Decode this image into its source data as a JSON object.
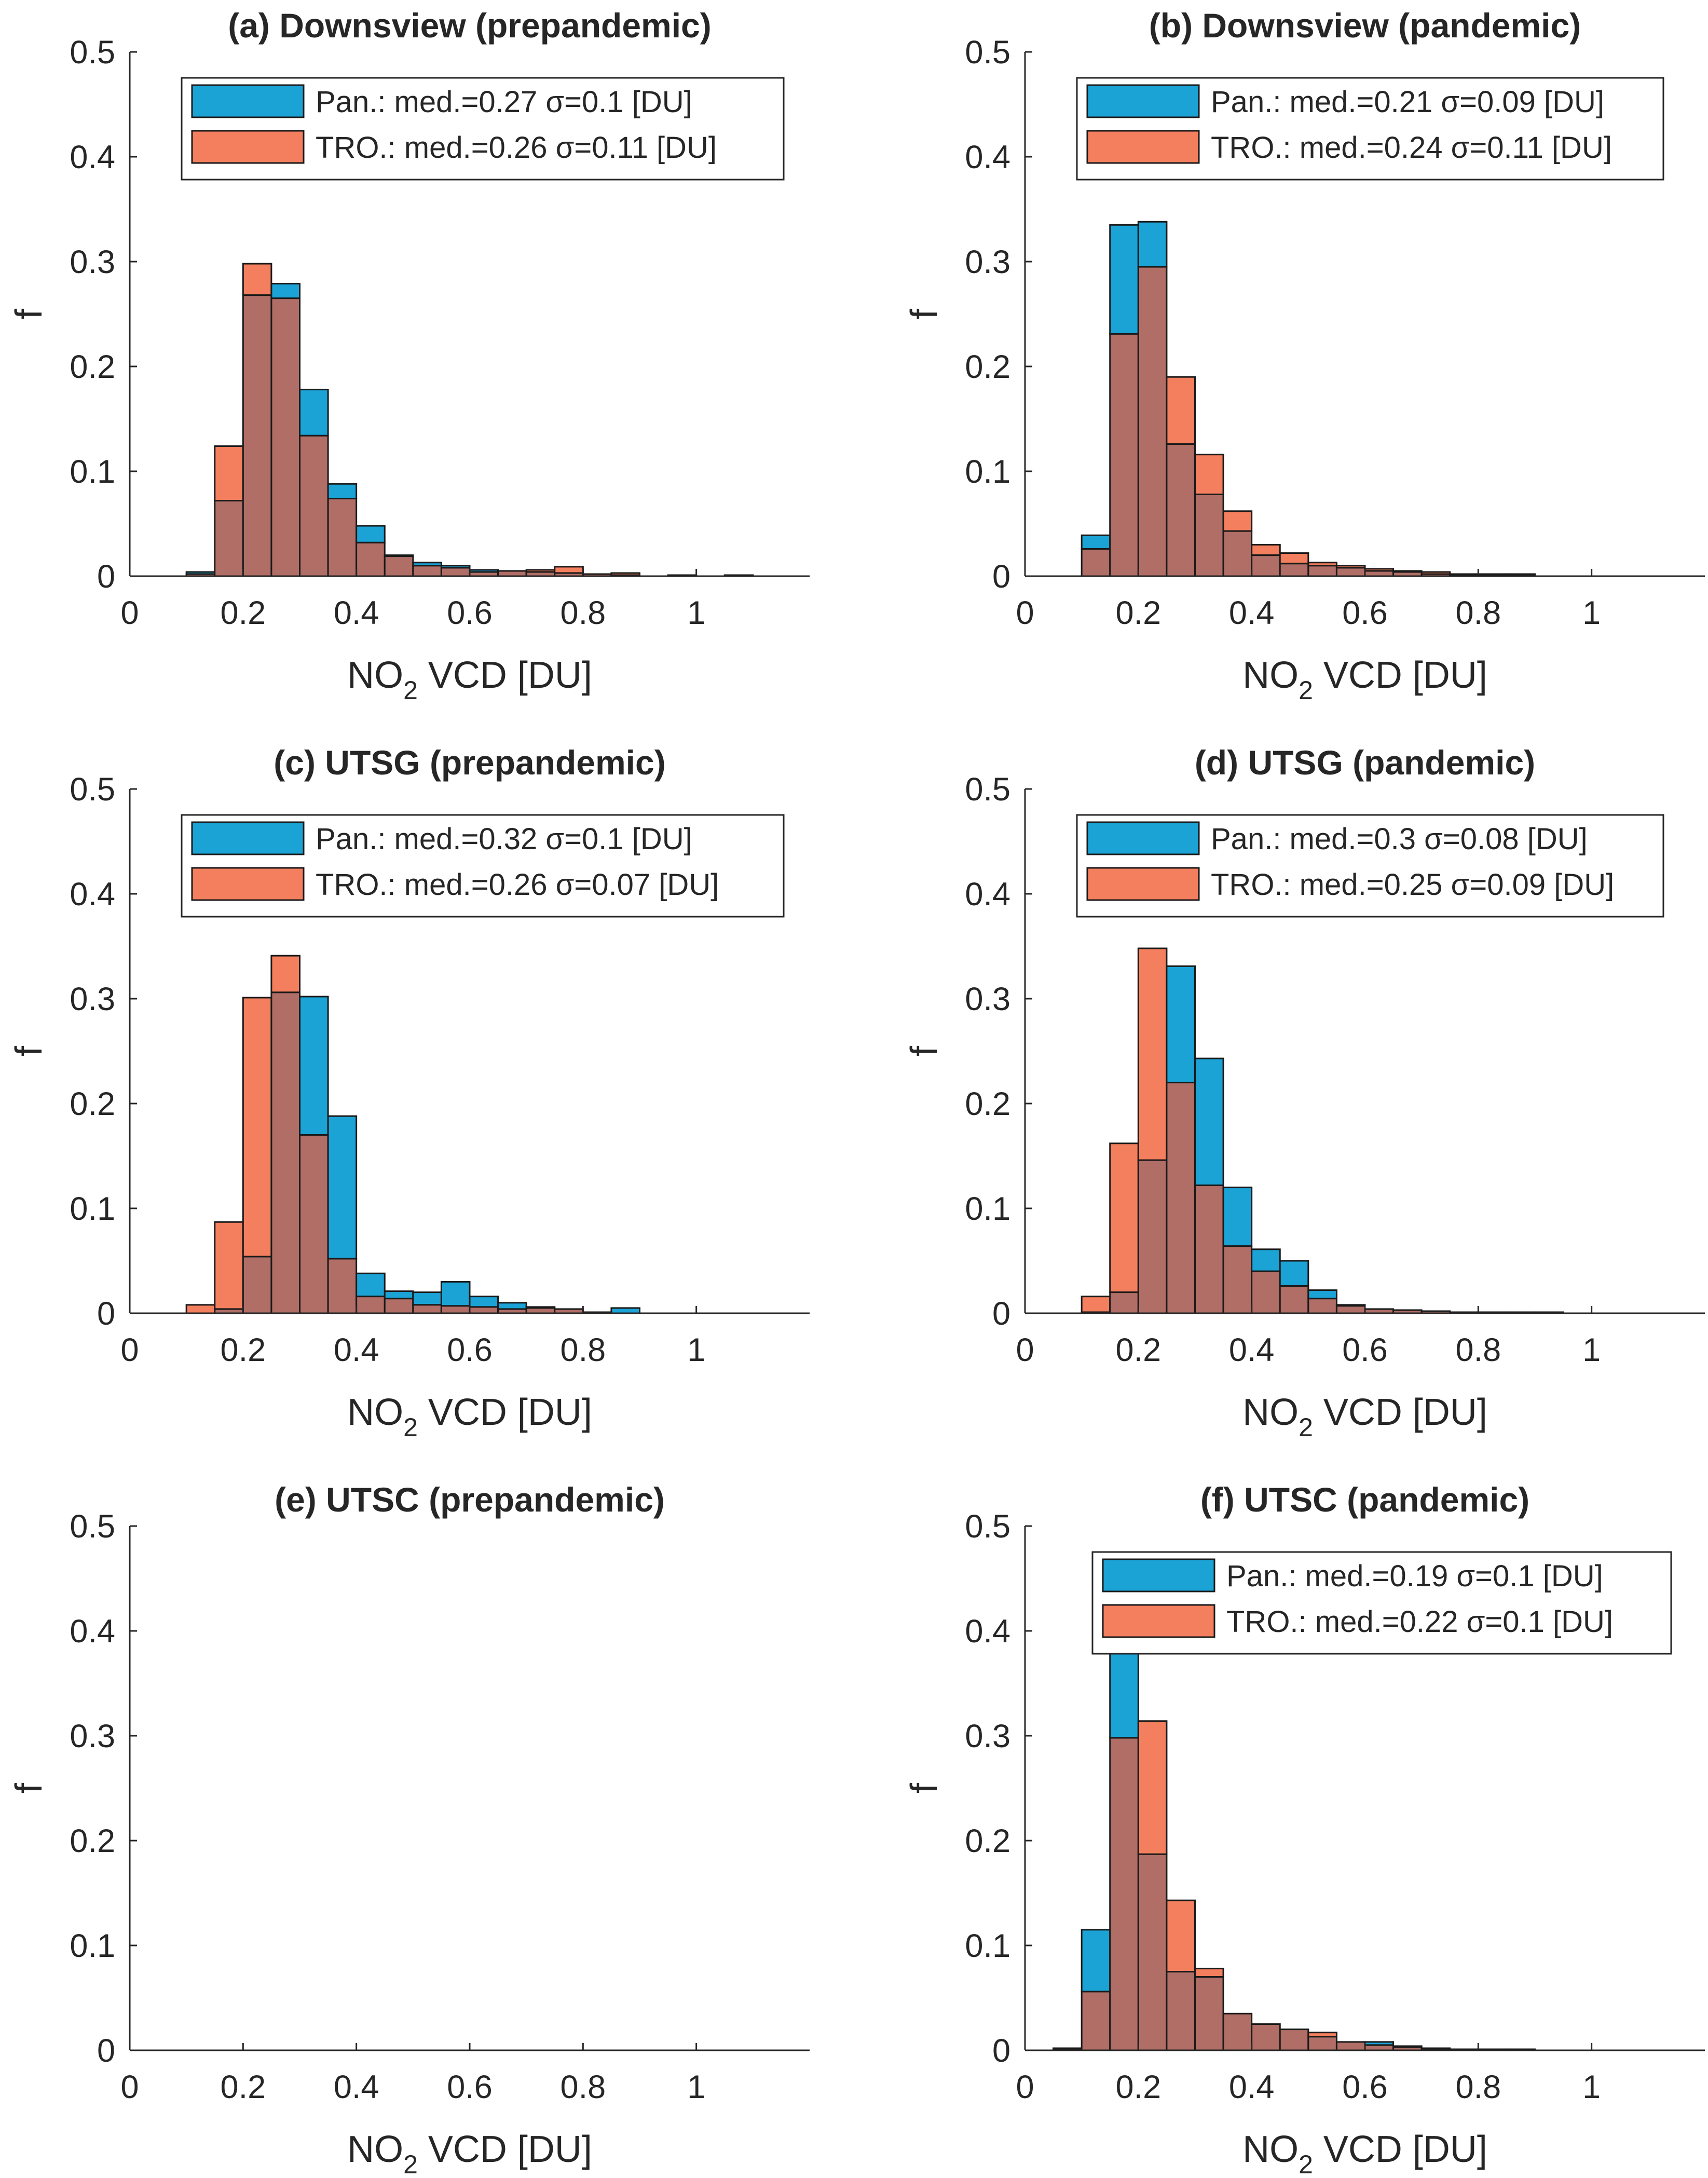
{
  "figure": {
    "xlabel_main": "NO",
    "xlabel_sub": "2",
    "xlabel_rest": " VCD [DU]",
    "ylabel": "f",
    "colors": {
      "pan": "#1ba3d6",
      "tro": "#f47f5e",
      "overlap": "#b06e66"
    }
  },
  "chart_data": [
    {
      "type": "bar",
      "panel": "a",
      "title": "(a) Downsview (prepandemic)",
      "xlabel": "NO2 VCD [DU]",
      "ylabel": "f",
      "xlim": [
        0,
        1.2
      ],
      "ylim": [
        0,
        0.5
      ],
      "xticks": [
        0,
        0.2,
        0.4,
        0.6,
        0.8,
        1
      ],
      "xtick_labels": [
        "0",
        "0.2",
        "0.4",
        "0.6",
        "0.8",
        "1"
      ],
      "yticks": [
        0,
        0.1,
        0.2,
        0.3,
        0.4,
        0.5
      ],
      "ytick_labels": [
        "0",
        "0.1",
        "0.2",
        "0.3",
        "0.4",
        "0.5"
      ],
      "bin_width": 0.05,
      "bin_starts": [
        0.1,
        0.15,
        0.2,
        0.25,
        0.3,
        0.35,
        0.4,
        0.45,
        0.5,
        0.55,
        0.6,
        0.65,
        0.7,
        0.75,
        0.8,
        0.85,
        0.9,
        0.95,
        1.0,
        1.05,
        1.1
      ],
      "series": [
        {
          "name": "Pan.",
          "legend": "Pan.: med.=0.27 σ=0.1 [DU]",
          "values": [
            0.004,
            0.072,
            0.268,
            0.279,
            0.178,
            0.088,
            0.048,
            0.019,
            0.013,
            0.01,
            0.006,
            0.005,
            0.004,
            0.003,
            0.002,
            0.001,
            0,
            0.001,
            0,
            0.001,
            0
          ]
        },
        {
          "name": "TRO.",
          "legend": "TRO.: med.=0.26 σ=0.11 [DU]",
          "values": [
            0.002,
            0.124,
            0.298,
            0.265,
            0.134,
            0.074,
            0.032,
            0.02,
            0.01,
            0.008,
            0.004,
            0.005,
            0.006,
            0.009,
            0.002,
            0.003,
            0,
            0,
            0,
            0,
            0
          ]
        }
      ],
      "legend_position": "top-right"
    },
    {
      "type": "bar",
      "panel": "b",
      "title": "(b) Downsview (pandemic)",
      "xlabel": "NO2 VCD [DU]",
      "ylabel": "f",
      "xlim": [
        0,
        1.2
      ],
      "ylim": [
        0,
        0.5
      ],
      "xticks": [
        0,
        0.2,
        0.4,
        0.6,
        0.8,
        1
      ],
      "xtick_labels": [
        "0",
        "0.2",
        "0.4",
        "0.6",
        "0.8",
        "1"
      ],
      "yticks": [
        0,
        0.1,
        0.2,
        0.3,
        0.4,
        0.5
      ],
      "ytick_labels": [
        "0",
        "0.1",
        "0.2",
        "0.3",
        "0.4",
        "0.5"
      ],
      "bin_width": 0.05,
      "bin_starts": [
        0.1,
        0.15,
        0.2,
        0.25,
        0.3,
        0.35,
        0.4,
        0.45,
        0.5,
        0.55,
        0.6,
        0.65,
        0.7,
        0.75,
        0.8,
        0.85,
        0.9,
        0.95,
        1.0,
        1.05,
        1.1
      ],
      "series": [
        {
          "name": "Pan.",
          "legend": "Pan.: med.=0.21 σ=0.09 [DU]",
          "values": [
            0.039,
            0.335,
            0.338,
            0.126,
            0.078,
            0.043,
            0.02,
            0.012,
            0.01,
            0.008,
            0.005,
            0.004,
            0.002,
            0.001,
            0.001,
            0.001,
            0,
            0,
            0,
            0,
            0
          ]
        },
        {
          "name": "TRO.",
          "legend": "TRO.: med.=0.24 σ=0.11 [DU]",
          "values": [
            0.026,
            0.231,
            0.295,
            0.19,
            0.116,
            0.062,
            0.03,
            0.022,
            0.013,
            0.01,
            0.007,
            0.005,
            0.004,
            0.002,
            0.002,
            0.002,
            0,
            0,
            0,
            0,
            0
          ]
        }
      ],
      "legend_position": "top-right"
    },
    {
      "type": "bar",
      "panel": "c",
      "title": "(c) UTSG (prepandemic)",
      "xlabel": "NO2 VCD [DU]",
      "ylabel": "f",
      "xlim": [
        0,
        1.2
      ],
      "ylim": [
        0,
        0.5
      ],
      "xticks": [
        0,
        0.2,
        0.4,
        0.6,
        0.8,
        1
      ],
      "xtick_labels": [
        "0",
        "0.2",
        "0.4",
        "0.6",
        "0.8",
        "1"
      ],
      "yticks": [
        0,
        0.1,
        0.2,
        0.3,
        0.4,
        0.5
      ],
      "ytick_labels": [
        "0",
        "0.1",
        "0.2",
        "0.3",
        "0.4",
        "0.5"
      ],
      "bin_width": 0.05,
      "bin_starts": [
        0.1,
        0.15,
        0.2,
        0.25,
        0.3,
        0.35,
        0.4,
        0.45,
        0.5,
        0.55,
        0.6,
        0.65,
        0.7,
        0.75,
        0.8,
        0.85,
        0.9,
        0.95,
        1.0,
        1.05,
        1.1
      ],
      "series": [
        {
          "name": "Pan.",
          "legend": "Pan.: med.=0.32 σ=0.1 [DU]",
          "values": [
            0,
            0.004,
            0.054,
            0.306,
            0.302,
            0.188,
            0.038,
            0.021,
            0.02,
            0.03,
            0.016,
            0.01,
            0.006,
            0.004,
            0.001,
            0.005,
            0,
            0,
            0,
            0,
            0
          ]
        },
        {
          "name": "TRO.",
          "legend": "TRO.: med.=0.26 σ=0.07 [DU]",
          "values": [
            0.008,
            0.087,
            0.301,
            0.341,
            0.17,
            0.052,
            0.016,
            0.014,
            0.008,
            0.007,
            0.006,
            0.004,
            0.005,
            0.004,
            0,
            0,
            0,
            0,
            0,
            0,
            0
          ]
        }
      ],
      "legend_position": "top-right"
    },
    {
      "type": "bar",
      "panel": "d",
      "title": "(d) UTSG (pandemic)",
      "xlabel": "NO2 VCD [DU]",
      "ylabel": "f",
      "xlim": [
        0,
        1.2
      ],
      "ylim": [
        0,
        0.5
      ],
      "xticks": [
        0,
        0.2,
        0.4,
        0.6,
        0.8,
        1
      ],
      "xtick_labels": [
        "0",
        "0.2",
        "0.4",
        "0.6",
        "0.8",
        "1"
      ],
      "yticks": [
        0,
        0.1,
        0.2,
        0.3,
        0.4,
        0.5
      ],
      "ytick_labels": [
        "0",
        "0.1",
        "0.2",
        "0.3",
        "0.4",
        "0.5"
      ],
      "bin_width": 0.05,
      "bin_starts": [
        0.1,
        0.15,
        0.2,
        0.25,
        0.3,
        0.35,
        0.4,
        0.45,
        0.5,
        0.55,
        0.6,
        0.65,
        0.7,
        0.75,
        0.8,
        0.85,
        0.9,
        0.95,
        1.0,
        1.05,
        1.1
      ],
      "series": [
        {
          "name": "Pan.",
          "legend": "Pan.: med.=0.3 σ=0.08 [DU]",
          "values": [
            0.001,
            0.02,
            0.146,
            0.331,
            0.243,
            0.12,
            0.061,
            0.05,
            0.022,
            0.007,
            0.004,
            0.003,
            0.002,
            0.001,
            0.001,
            0.001,
            0.001,
            0,
            0,
            0,
            0
          ]
        },
        {
          "name": "TRO.",
          "legend": "TRO.: med.=0.25 σ=0.09 [DU]",
          "values": [
            0.016,
            0.162,
            0.348,
            0.22,
            0.122,
            0.064,
            0.04,
            0.026,
            0.014,
            0.008,
            0.004,
            0.003,
            0.002,
            0.001,
            0.001,
            0.001,
            0.001,
            0,
            0,
            0,
            0
          ]
        }
      ],
      "legend_position": "top-right"
    },
    {
      "type": "bar",
      "panel": "e",
      "title": "(e) UTSC (prepandemic)",
      "xlabel": "NO2 VCD [DU]",
      "ylabel": "f",
      "xlim": [
        0,
        1.2
      ],
      "ylim": [
        0,
        0.5
      ],
      "xticks": [
        0,
        0.2,
        0.4,
        0.6,
        0.8,
        1
      ],
      "xtick_labels": [
        "0",
        "0.2",
        "0.4",
        "0.6",
        "0.8",
        "1"
      ],
      "yticks": [
        0,
        0.1,
        0.2,
        0.3,
        0.4,
        0.5
      ],
      "ytick_labels": [
        "0",
        "0.1",
        "0.2",
        "0.3",
        "0.4",
        "0.5"
      ],
      "bin_width": 0.05,
      "bin_starts": [],
      "series": []
    },
    {
      "type": "bar",
      "panel": "f",
      "title": "(f) UTSC (pandemic)",
      "xlabel": "NO2 VCD [DU]",
      "ylabel": "f",
      "xlim": [
        0,
        1.2
      ],
      "ylim": [
        0,
        0.5
      ],
      "xticks": [
        0,
        0.2,
        0.4,
        0.6,
        0.8,
        1
      ],
      "xtick_labels": [
        "0",
        "0.2",
        "0.4",
        "0.6",
        "0.8",
        "1"
      ],
      "yticks": [
        0,
        0.1,
        0.2,
        0.3,
        0.4,
        0.5
      ],
      "ytick_labels": [
        "0",
        "0.1",
        "0.2",
        "0.3",
        "0.4",
        "0.5"
      ],
      "bin_width": 0.05,
      "bin_starts": [
        0.05,
        0.1,
        0.15,
        0.2,
        0.25,
        0.3,
        0.35,
        0.4,
        0.45,
        0.5,
        0.55,
        0.6,
        0.65,
        0.7,
        0.75,
        0.8,
        0.85,
        0.9,
        0.95,
        1.0,
        1.05,
        1.1
      ],
      "series": [
        {
          "name": "Pan.",
          "legend": "Pan.: med.=0.19 σ=0.1 [DU]",
          "values": [
            0.001,
            0.115,
            0.39,
            0.187,
            0.075,
            0.07,
            0.035,
            0.025,
            0.02,
            0.013,
            0.008,
            0.008,
            0.004,
            0.002,
            0.001,
            0.001,
            0,
            0,
            0,
            0,
            0,
            0
          ]
        },
        {
          "name": "TRO.",
          "legend": "TRO.: med.=0.22 σ=0.1 [DU]",
          "values": [
            0.002,
            0.056,
            0.298,
            0.314,
            0.143,
            0.078,
            0.035,
            0.025,
            0.02,
            0.017,
            0.008,
            0.005,
            0.003,
            0.001,
            0.001,
            0.001,
            0.001,
            0,
            0,
            0,
            0,
            0
          ]
        }
      ],
      "legend_position": "top-right"
    }
  ]
}
